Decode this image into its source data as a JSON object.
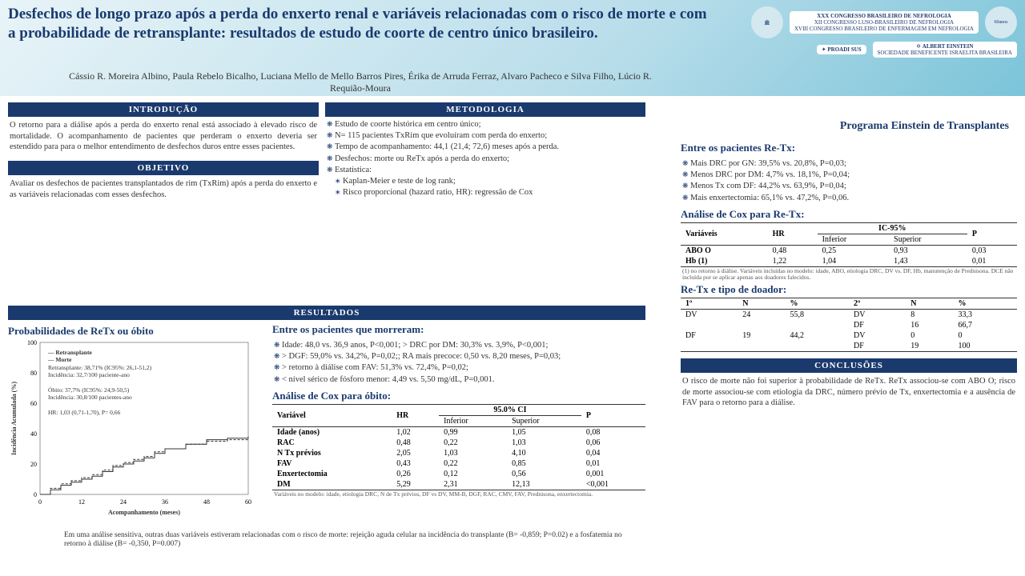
{
  "title": "Desfechos de longo prazo após a perda do enxerto renal e variáveis relacionadas com o risco de morte e com a probabilidade de retransplante: resultados de estudo de coorte de centro único brasileiro.",
  "authors": "Cássio R. Moreira Albino, Paula Rebelo Bicalho, Luciana Mello de Mello Barros Pires, Érika de Arruda Ferraz, Alvaro Pacheco e Silva Filho, Lúcio R. Requião-Moura",
  "program": "Programa Einstein de Transplantes",
  "logos": {
    "congress": "XXX CONGRESSO BRASILEIRO DE NEFROLOGIA",
    "sub1": "XII CONGRESSO LUSO-BRASILEIRO DE NEFROLOGIA",
    "sub2": "XVIII CONGRESSO BRASILEIRO DE ENFERMAGEM EM NEFROLOGIA",
    "proadi": "PROADI SUS",
    "einstein": "ALBERT EINSTEIN",
    "years": "60anos"
  },
  "sections": {
    "intro_h": "INTRODUÇÃO",
    "intro_t": "O retorno para a diálise após a perda do enxerto renal está associado à elevado risco de mortalidade. O acompanhamento de pacientes que perderam o enxerto deveria ser estendido para para o melhor entendimento de desfechos duros entre esses pacientes.",
    "obj_h": "OBJETIVO",
    "obj_t": "Avaliar os desfechos de pacientes transplantados de rim (TxRim) após a perda do enxerto e as variáveis relacionadas com esses desfechos.",
    "met_h": "METODOLOGIA",
    "met_items": [
      "Estudo de coorte histórica em centro único;",
      "N= 115 pacientes TxRim que evoluíram com perda do enxerto;",
      "Tempo de acompanhamento: 44,1 (21,4; 72,6) meses após a perda.",
      "Desfechos: morte ou ReTx após a perda do enxerto;",
      "Estatística:"
    ],
    "met_sub": [
      "Kaplan-Meier e teste de log rank;",
      "Risco proporcional (hazard ratio, HR): regressão de Cox"
    ],
    "res_h": "RESULTADOS",
    "prob_h": "Probabilidades de ReTx ou óbito",
    "died_h": "Entre os pacientes que morreram:",
    "died_items": [
      "Idade: 48,0 vs. 36,9 anos, P<0,001; > DRC por DM: 30,3% vs. 3,9%, P<0,001;",
      "> DGF: 59,0% vs. 34,2%, P=0,02;; RA mais precoce: 0,50 vs. 8,20 meses, P=0,03;",
      "> retorno à diálise com FAV: 51,3% vs. 72,4%, P=0,02;",
      "< nível sérico de fósforo menor: 4,49 vs. 5,50 mg/dL, P=0,001."
    ],
    "cox_obito_h": "Análise de Cox para óbito:",
    "cox_obito_cols": [
      "Variável",
      "HR",
      "95.0% CI",
      "P"
    ],
    "cox_obito_sub": [
      "Inferior",
      "Superior"
    ],
    "cox_obito_rows": [
      [
        "Idade (anos)",
        "1,02",
        "0,99",
        "1,05",
        "0,08"
      ],
      [
        "RAC",
        "0,48",
        "0,22",
        "1,03",
        "0,06"
      ],
      [
        "N Tx prévios",
        "2,05",
        "1,03",
        "4,10",
        "0,04"
      ],
      [
        "FAV",
        "0,43",
        "0,22",
        "0,85",
        "0,01"
      ],
      [
        "Enxertectomia",
        "0,26",
        "0,12",
        "0,56",
        "0,001"
      ],
      [
        "DM",
        "5,29",
        "2,31",
        "12,13",
        "<0,001"
      ]
    ],
    "cox_obito_note": "Variáveis no modelo: idade, etiologia DRC, N de Tx prévios, DF vs DV, MM-B, DGF, RAC, CMV, FAV, Prednisona, enxertectomia.",
    "retx_h": "Entre os pacientes Re-Tx:",
    "retx_items": [
      "Mais DRC por GN: 39,5% vs. 20,8%, P=0,03;",
      "Menos DRC por DM: 4,7% vs. 18,1%, P=0,04;",
      "Menos Tx com DF: 44,2% vs. 63,9%, P=0,04;",
      "Mais enxertectomia: 65,1% vs. 47,2%, P=0,06."
    ],
    "cox_retx_h": "Análise de Cox para Re-Tx:",
    "cox_retx_cols": [
      "Variáveis",
      "HR",
      "IC-95%",
      "P"
    ],
    "cox_retx_rows": [
      [
        "ABO O",
        "0,48",
        "0,25",
        "0,93",
        "0,03"
      ],
      [
        "Hb (1)",
        "1,22",
        "1,04",
        "1,43",
        "0,01"
      ]
    ],
    "cox_retx_note": "(1) no retorno à diálise. Variáveis incluídas no modelo: idade, ABO, etiologia DRC, DV vs. DF, Hb, manutenção de Prednisona. DCE não incluída por se aplicar apenas aos doadores falecidos.",
    "donor_h": "Re-Tx e tipo de doador:",
    "donor_cols": [
      "1º",
      "N",
      "%",
      "2º",
      "N",
      "%"
    ],
    "donor_rows": [
      [
        "DV",
        "24",
        "55,8",
        "DV",
        "8",
        "33,3"
      ],
      [
        "",
        "",
        "",
        "DF",
        "16",
        "66,7"
      ],
      [
        "DF",
        "19",
        "44,2",
        "DV",
        "0",
        "0"
      ],
      [
        "",
        "",
        "",
        "DF",
        "19",
        "100"
      ]
    ],
    "conc_h": "CONCLUSÕES",
    "conc_t": "O risco de morte não foi superior à probabilidade de ReTx. ReTx associou-se com ABO O; risco de morte associou-se com etiologia da DRC, número prévio de Tx, enxertectomia e a ausência de FAV para o retorno para a diálise.",
    "sensitivity": "Em uma análise sensitiva, outras duas variáveis estiveram relacionadas com o risco de morte: rejeição aguda celular na incidência do transplante (B= -0,859; P=0.02) e a fosfatemia no retorno à diálise (B= -0,350, P=0.007)"
  },
  "chart": {
    "type": "kaplan-meier",
    "x_label": "Acompanhamento (meses)",
    "y_label": "Incidência Acumulada (%)",
    "xlim": [
      0,
      60
    ],
    "ylim": [
      0,
      100
    ],
    "xticks": [
      0,
      12,
      24,
      36,
      48,
      60
    ],
    "yticks": [
      0,
      20,
      40,
      60,
      80,
      100
    ],
    "series": [
      {
        "name": "Retransplante",
        "style": "solid",
        "color": "#333",
        "points": [
          [
            0,
            0
          ],
          [
            3,
            3
          ],
          [
            6,
            6
          ],
          [
            9,
            8
          ],
          [
            12,
            10
          ],
          [
            15,
            12
          ],
          [
            18,
            15
          ],
          [
            21,
            18
          ],
          [
            24,
            20
          ],
          [
            27,
            22
          ],
          [
            30,
            24
          ],
          [
            33,
            27
          ],
          [
            36,
            30
          ],
          [
            42,
            33
          ],
          [
            48,
            36
          ],
          [
            54,
            37
          ],
          [
            60,
            38
          ]
        ]
      },
      {
        "name": "Morte",
        "style": "dashed",
        "color": "#333",
        "points": [
          [
            0,
            0
          ],
          [
            3,
            4
          ],
          [
            6,
            7
          ],
          [
            9,
            9
          ],
          [
            12,
            11
          ],
          [
            15,
            13
          ],
          [
            18,
            16
          ],
          [
            21,
            19
          ],
          [
            24,
            21
          ],
          [
            27,
            23
          ],
          [
            30,
            25
          ],
          [
            33,
            28
          ],
          [
            36,
            30
          ],
          [
            42,
            33
          ],
          [
            48,
            35
          ],
          [
            54,
            36
          ],
          [
            60,
            37
          ]
        ]
      }
    ],
    "legend_text": [
      "— Retransplante",
      "--- Morte",
      "Retransplante: 38,71% (IC95%: 26,1-51,2)",
      "Incidência: 32,7/100 paciente-ano",
      "",
      "Óbito: 37,7% (IC95%: 24,9-50,5)",
      "Incidência: 30,8/100 pacientes-ano",
      "",
      "HR: 1,03 (0,71-1,70), P= 0,66"
    ]
  }
}
